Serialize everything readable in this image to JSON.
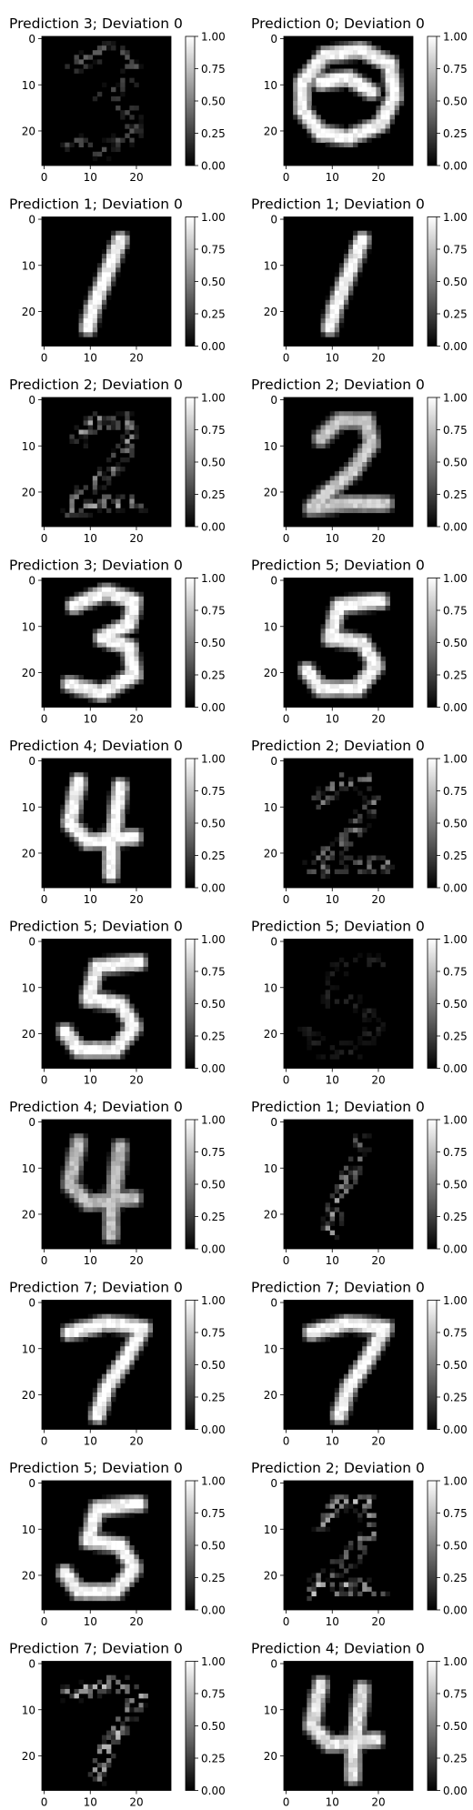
{
  "chart_data": {
    "type": "heatmap",
    "panels": [
      {
        "title": "Prediction 3; Deviation 0",
        "digit": "3",
        "strength": 0.35,
        "scatter": true
      },
      {
        "title": "Prediction 0; Deviation 0",
        "digit": "0",
        "strength": 1.0,
        "scatter": false
      },
      {
        "title": "Prediction 1; Deviation 0",
        "digit": "1",
        "strength": 1.0,
        "scatter": false
      },
      {
        "title": "Prediction 1; Deviation 0",
        "digit": "1",
        "strength": 1.0,
        "scatter": false
      },
      {
        "title": "Prediction 2; Deviation 0",
        "digit": "2",
        "strength": 0.6,
        "scatter": true
      },
      {
        "title": "Prediction 2; Deviation 0",
        "digit": "2",
        "strength": 0.8,
        "scatter": false
      },
      {
        "title": "Prediction 3; Deviation 0",
        "digit": "3",
        "strength": 1.0,
        "scatter": false
      },
      {
        "title": "Prediction 5; Deviation 0",
        "digit": "5",
        "strength": 1.0,
        "scatter": false
      },
      {
        "title": "Prediction 4; Deviation 0",
        "digit": "4",
        "strength": 1.0,
        "scatter": false
      },
      {
        "title": "Prediction 2; Deviation 0",
        "digit": "2",
        "strength": 0.5,
        "scatter": true
      },
      {
        "title": "Prediction 5; Deviation 0",
        "digit": "5",
        "strength": 1.0,
        "scatter": false
      },
      {
        "title": "Prediction 5; Deviation 0",
        "digit": "5",
        "strength": 0.15,
        "scatter": true
      },
      {
        "title": "Prediction 4; Deviation 0",
        "digit": "4",
        "strength": 0.75,
        "scatter": false
      },
      {
        "title": "Prediction 1; Deviation 0",
        "digit": "1",
        "strength": 0.6,
        "scatter": true
      },
      {
        "title": "Prediction 7; Deviation 0",
        "digit": "7",
        "strength": 1.0,
        "scatter": false
      },
      {
        "title": "Prediction 7; Deviation 0",
        "digit": "7",
        "strength": 1.0,
        "scatter": false
      },
      {
        "title": "Prediction 5; Deviation 0",
        "digit": "5",
        "strength": 1.0,
        "scatter": false
      },
      {
        "title": "Prediction 2; Deviation 0",
        "digit": "2",
        "strength": 0.7,
        "scatter": true
      },
      {
        "title": "Prediction 7; Deviation 0",
        "digit": "7",
        "strength": 0.7,
        "scatter": true
      },
      {
        "title": "Prediction 4; Deviation 0",
        "digit": "4",
        "strength": 0.9,
        "scatter": false
      }
    ],
    "image_size": [
      28,
      28
    ],
    "x_ticks": [
      0,
      10,
      20
    ],
    "y_ticks": [
      0,
      10,
      20
    ],
    "colorbar": {
      "min": 0.0,
      "max": 1.0,
      "ticks": [
        "0.00",
        "0.25",
        "0.50",
        "0.75",
        "1.00"
      ],
      "colormap": "gray"
    }
  }
}
